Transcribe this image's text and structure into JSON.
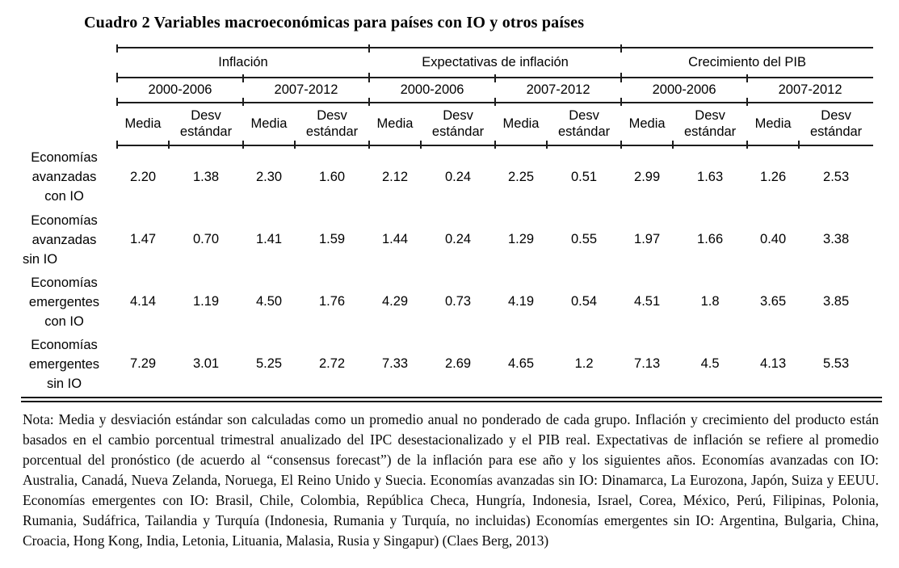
{
  "colors": {
    "background": "#ffffff",
    "text": "#000000",
    "rule": "#1c1c1c"
  },
  "title": "Cuadro 2 Variables macroeconómicas para países con IO y otros países",
  "table": {
    "groups": [
      "Inflación",
      "Expectativas de inflación",
      "Crecimiento del PIB"
    ],
    "periods": [
      "2000-2006",
      "2007-2012"
    ],
    "stat_headers": [
      "Media",
      "Desv estándar"
    ],
    "rows": [
      {
        "label_lines": [
          "Economías",
          "avanzadas",
          "con IO"
        ],
        "values": [
          "2.20",
          "1.38",
          "2.30",
          "1.60",
          "2.12",
          "0.24",
          "2.25",
          "0.51",
          "2.99",
          "1.63",
          "1.26",
          "2.53"
        ]
      },
      {
        "label_lines": [
          "Economías",
          "avanzadas",
          "sin IO"
        ],
        "values": [
          "1.47",
          "0.70",
          "1.41",
          "1.59",
          "1.44",
          "0.24",
          "1.29",
          "0.55",
          "1.97",
          "1.66",
          "0.40",
          "3.38"
        ]
      },
      {
        "label_lines": [
          "Economías",
          "emergentes",
          "con IO"
        ],
        "values": [
          "4.14",
          "1.19",
          "4.50",
          "1.76",
          "4.29",
          "0.73",
          "4.19",
          "0.54",
          "4.51",
          "1.8",
          "3.65",
          "3.85"
        ]
      },
      {
        "label_lines": [
          "Economías",
          "emergentes",
          "sin IO"
        ],
        "values": [
          "7.29",
          "3.01",
          "5.25",
          "2.72",
          "7.33",
          "2.69",
          "4.65",
          "1.2",
          "7.13",
          "4.5",
          "4.13",
          "5.53"
        ]
      }
    ]
  },
  "note": "Nota: Media y desviación estándar  son calculadas como un promedio anual no ponderado de cada grupo. Inflación y crecimiento del producto están basados en el cambio porcentual trimestral anualizado del IPC desestacionalizado y el PIB real. Expectativas de inflación se refiere al promedio porcentual del pronóstico (de acuerdo al “consensus forecast”) de la inflación para ese año y los siguientes años.  Economías avanzadas con IO: Australia, Canadá, Nueva Zelanda, Noruega, El Reino Unido y Suecia. Economías avanzadas sin IO: Dinamarca, La Eurozona, Japón, Suiza y EEUU. Economías emergentes con IO: Brasil, Chile, Colombia, República Checa, Hungría, Indonesia, Israel, Corea, México,  Perú, Filipinas, Polonia, Rumania, Sudáfrica, Tailandia y Turquía (Indonesia, Rumania y Turquía, no incluidas) Economías  emergentes sin IO: Argentina, Bulgaria, China, Croacia, Hong Kong, India, Letonia, Lituania, Malasia, Rusia y Singapur) (Claes Berg, 2013)"
}
